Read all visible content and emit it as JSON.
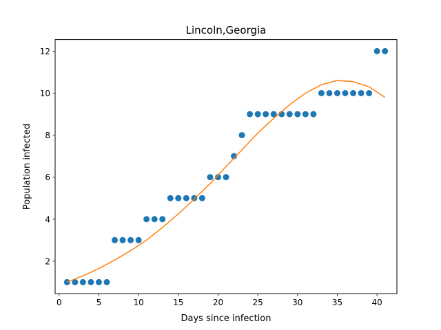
{
  "chart_data": {
    "type": "scatter",
    "title": "Lincoln,Georgia",
    "xlabel": "Days since infection",
    "ylabel": "Population infected",
    "xlim": [
      -0.5,
      42.5
    ],
    "ylim": [
      0.45,
      12.55
    ],
    "xticks": [
      0,
      5,
      10,
      15,
      20,
      25,
      30,
      35,
      40
    ],
    "yticks": [
      2,
      4,
      6,
      8,
      10,
      12
    ],
    "grid": false,
    "series": [
      {
        "kind": "scatter",
        "color": "#1f77b4",
        "x": [
          1,
          2,
          3,
          4,
          5,
          6,
          7,
          8,
          9,
          10,
          11,
          12,
          13,
          14,
          15,
          16,
          17,
          18,
          19,
          20,
          21,
          22,
          23,
          24,
          25,
          26,
          27,
          28,
          29,
          30,
          31,
          32,
          33,
          34,
          35,
          36,
          37,
          38,
          39,
          40,
          41
        ],
        "y": [
          1,
          1,
          1,
          1,
          1,
          1,
          3,
          3,
          3,
          3,
          4,
          4,
          4,
          5,
          5,
          5,
          5,
          5,
          6,
          6,
          6,
          7,
          8,
          9,
          9,
          9,
          9,
          9,
          9,
          9,
          9,
          9,
          10,
          10,
          10,
          10,
          10,
          10,
          10,
          12,
          12
        ]
      },
      {
        "kind": "line",
        "color": "#ff7f0e",
        "x": [
          1,
          3,
          5,
          7,
          9,
          11,
          13,
          15,
          17,
          19,
          21,
          23,
          25,
          27,
          29,
          31,
          33,
          35,
          37,
          39,
          41
        ],
        "y": [
          1.0,
          1.3,
          1.65,
          2.05,
          2.5,
          3.0,
          3.6,
          4.25,
          4.95,
          5.7,
          6.5,
          7.3,
          8.1,
          8.8,
          9.45,
          10.0,
          10.4,
          10.6,
          10.55,
          10.3,
          9.8
        ]
      }
    ]
  }
}
